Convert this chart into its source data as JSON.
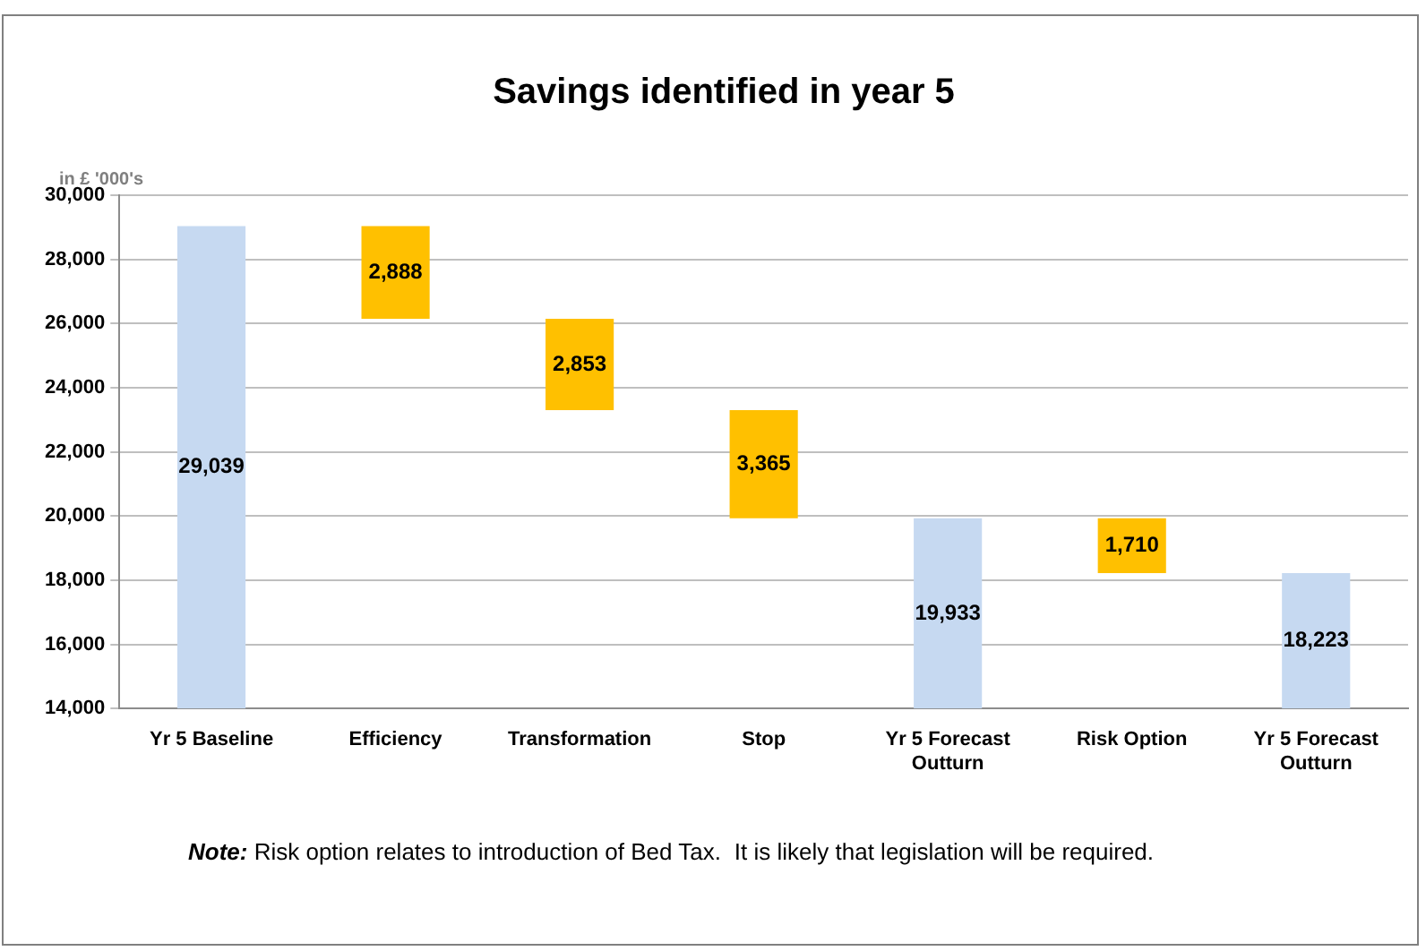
{
  "chart_data": {
    "type": "bar",
    "title": "Savings identified in year 5",
    "ylabel": "in £ '000's",
    "categories": [
      "Yr 5 Baseline",
      "Efficiency",
      "Transformation",
      "Stop",
      "Yr 5 Forecast Outturn",
      "Risk Option",
      "Yr 5 Forecast Outturn"
    ],
    "values": [
      15039,
      2888,
      2853,
      3365,
      5933,
      1710,
      4223
    ],
    "base": [
      14000,
      26151,
      23298,
      19933,
      14000,
      18223,
      14000
    ],
    "colors": [
      "#c6d9f1",
      "#ffc000",
      "#ffc000",
      "#ffc000",
      "#c6d9f1",
      "#ffc000",
      "#c6d9f1"
    ],
    "value_labels": [
      "29,039",
      "2,888",
      "2,853",
      "3,365",
      "19,933",
      "1,710",
      "18,223"
    ],
    "ylim": [
      14000,
      30000
    ],
    "yticks": [
      {
        "value": 14000,
        "label": "14,000"
      },
      {
        "value": 16000,
        "label": "16,000"
      },
      {
        "value": 18000,
        "label": "18,000"
      },
      {
        "value": 20000,
        "label": "20,000"
      },
      {
        "value": 22000,
        "label": "22,000"
      },
      {
        "value": 24000,
        "label": "24,000"
      },
      {
        "value": 26000,
        "label": "26,000"
      },
      {
        "value": 28000,
        "label": "28,000"
      },
      {
        "value": 30000,
        "label": "30,000"
      }
    ],
    "grid": "y",
    "annotations": [
      "Note: Risk option relates to introduction of Bed Tax.  It is likely that legislation will be required."
    ]
  }
}
